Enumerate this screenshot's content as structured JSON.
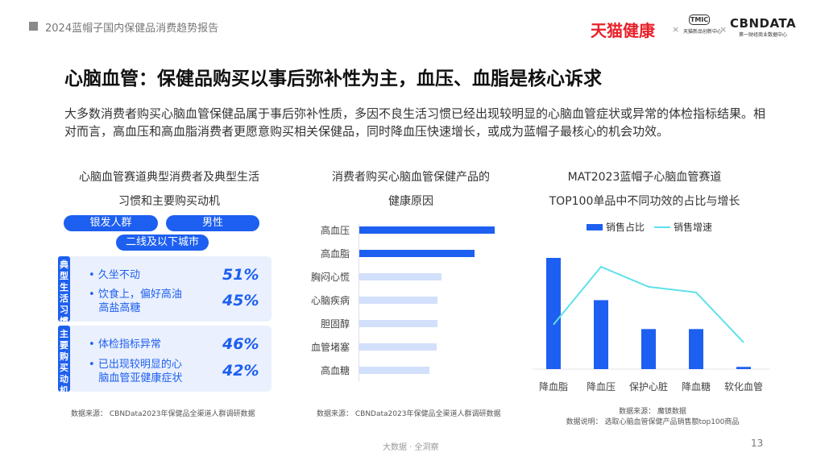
{
  "header": {
    "report_title": "2024蓝帽子国内保健品消费趋势报告",
    "logo_tmall": "天猫健康",
    "logo_tmic": "TMIC",
    "logo_tmic_sub": "天猫新品创新中心",
    "logo_cbn": "CBNDATA",
    "logo_cbn_sub": "第一财经商业数据中心",
    "separator": "×"
  },
  "title": "心脑血管：保健品购买以事后弥补性为主，血压、血脂是核心诉求",
  "intro": "大多数消费者购买心脑血管保健品属于事后弥补性质，多因不良生活习惯已经出现较明显的心脑血管症状或异常的体检指标结果。相对而言，高血压和高血脂消费者更愿意购买相关保健品，同时降血压快速增长，或成为蓝帽子最核心的机会功效。",
  "left": {
    "title1": "心脑血管赛道典型消费者及典型生活",
    "title2": "习惯和主要购买动机",
    "tags": [
      "银发人群",
      "男性",
      "二线及以下城市"
    ],
    "habits": {
      "label": "典型生活习惯",
      "items": [
        {
          "text1": "久坐不动",
          "text2": "",
          "pct": "51%"
        },
        {
          "text1": "饮食上，偏好高油",
          "text2": "高盐高糖",
          "pct": "45%"
        }
      ]
    },
    "motives": {
      "label": "主要购买动机",
      "items": [
        {
          "text1": "体检指标异常",
          "text2": "",
          "pct": "46%"
        },
        {
          "text1": "已出现较明显的心",
          "text2": "脑血管亚健康症状",
          "pct": "42%"
        }
      ]
    },
    "source": "数据来源： CBNData2023年保健品全渠道人群调研数据"
  },
  "chart_data": [
    {
      "type": "bar",
      "orientation": "horizontal",
      "title": "消费者购买心脑血管保健产品的健康原因",
      "categories": [
        "高血压",
        "高血脂",
        "胸闷心慌",
        "心脑疾病",
        "胆固醇",
        "血管堵塞",
        "高血糖"
      ],
      "values": [
        100,
        85,
        61,
        58,
        58,
        57,
        52
      ],
      "highlight": [
        true,
        true,
        false,
        false,
        false,
        false,
        false
      ],
      "colors": {
        "highlight": "#1d5ff0",
        "normal": "#d3e0fb"
      },
      "source": "数据来源： CBNData2023年保健品全渠道人群调研数据"
    },
    {
      "type": "bar+line",
      "title": "MAT2023蓝帽子心脑血管赛道\nTOP100单品中不同功效的占比与增长",
      "title1": "MAT2023蓝帽子心脑血管赛道",
      "title2": "TOP100单品中不同功效的占比与增长",
      "categories": [
        "降血脂",
        "降血压",
        "保护心脏",
        "降血糖",
        "软化血管"
      ],
      "series": [
        {
          "name": "销售占比",
          "type": "bar",
          "color": "#1d5ff0",
          "values": [
            100,
            62,
            36,
            36,
            2
          ]
        },
        {
          "name": "销售增速",
          "type": "line",
          "color": "#5ee0ea",
          "values": [
            40,
            92,
            74,
            69,
            24
          ]
        }
      ],
      "legend": "top",
      "source": "数据来源： 魔镜数据",
      "note": "数据说明： 选取心脑血管保健产品销售额top100商品"
    }
  ],
  "footer": {
    "text": "大数据 · 全洞察",
    "page": "13"
  }
}
